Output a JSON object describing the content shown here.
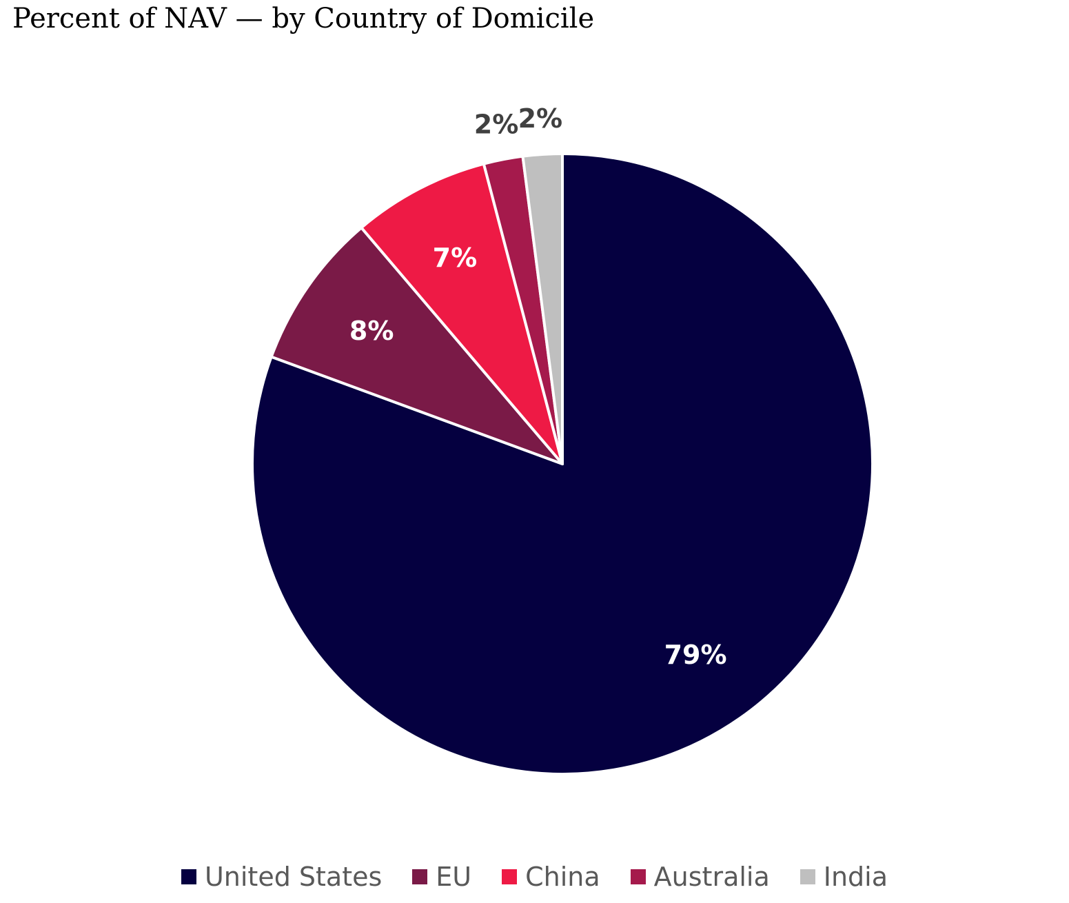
{
  "title": "Percent of NAV — by Country of Domicile",
  "chart_data": {
    "type": "pie",
    "title": "Percent of NAV — by Country of Domicile",
    "categories": [
      "United States",
      "EU",
      "China",
      "Australia",
      "India"
    ],
    "values": [
      79,
      8,
      7,
      2,
      2
    ],
    "data_labels": [
      "79%",
      "8%",
      "7%",
      "2%",
      "2%"
    ],
    "colors": [
      "#050040",
      "#7A1A47",
      "#EE1A45",
      "#A51A4C",
      "#BFBFBF"
    ],
    "label_colors": [
      "#FFFFFF",
      "#FFFFFF",
      "#FFFFFF",
      "#404040",
      "#404040"
    ],
    "legend_position": "bottom",
    "start_angle": "12 o'clock",
    "direction": "clockwise"
  }
}
